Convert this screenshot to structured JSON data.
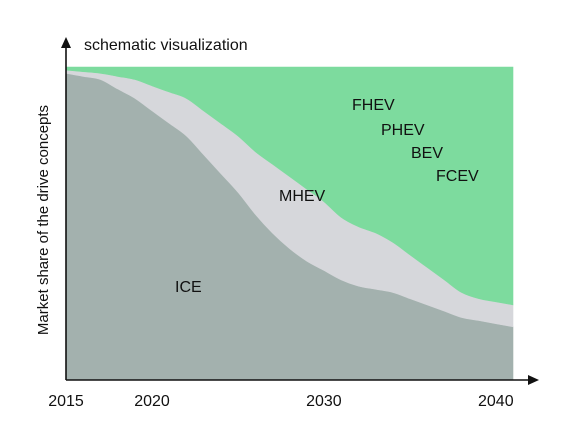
{
  "chart_data": {
    "type": "area",
    "stacked": true,
    "title": "schematic visualization",
    "xlabel": "",
    "ylabel": "Market share of the drive concepts",
    "x_ticks": [
      "2015",
      "2020",
      "2030",
      "2040"
    ],
    "xlim": [
      2015,
      2041
    ],
    "ylim": [
      0,
      100
    ],
    "grid": false,
    "legend": "none",
    "colors": {
      "ice": "#a3b1ae",
      "mhev": "#d6d7db",
      "electrified": "#7ddb9e",
      "axis": "#111111",
      "background": "#ffffff"
    },
    "x": [
      2015,
      2016,
      2017,
      2018,
      2019,
      2020,
      2021,
      2022,
      2023,
      2024,
      2025,
      2026,
      2027,
      2028,
      2029,
      2030,
      2031,
      2032,
      2033,
      2034,
      2035,
      2036,
      2037,
      2038,
      2039,
      2040,
      2041
    ],
    "series": [
      {
        "name": "ICE",
        "key": "ice",
        "values": [
          98,
          97,
          96,
          93,
          90,
          86,
          82,
          78,
          72,
          66,
          60,
          53,
          47,
          42,
          38,
          35,
          32,
          30,
          29,
          28,
          26,
          24,
          22,
          20,
          19,
          18,
          17
        ]
      },
      {
        "name": "MHEV",
        "key": "mhev",
        "values": [
          1,
          1.5,
          2,
          4,
          6,
          8,
          10,
          12,
          14,
          16,
          18,
          20,
          22,
          23,
          23,
          22,
          20,
          19,
          18,
          16,
          14,
          12,
          10,
          8,
          7,
          7,
          7
        ]
      },
      {
        "name": "FHEV, PHEV, BEV, FCEV",
        "key": "electrified",
        "values": [
          1,
          1.5,
          2,
          3,
          4,
          6,
          8,
          10,
          14,
          18,
          22,
          27,
          31,
          35,
          39,
          43,
          48,
          51,
          53,
          56,
          60,
          64,
          68,
          72,
          74,
          75,
          76
        ]
      }
    ],
    "annotations": [
      "ICE",
      "MHEV",
      "FHEV",
      "PHEV",
      "BEV",
      "FCEV"
    ]
  }
}
